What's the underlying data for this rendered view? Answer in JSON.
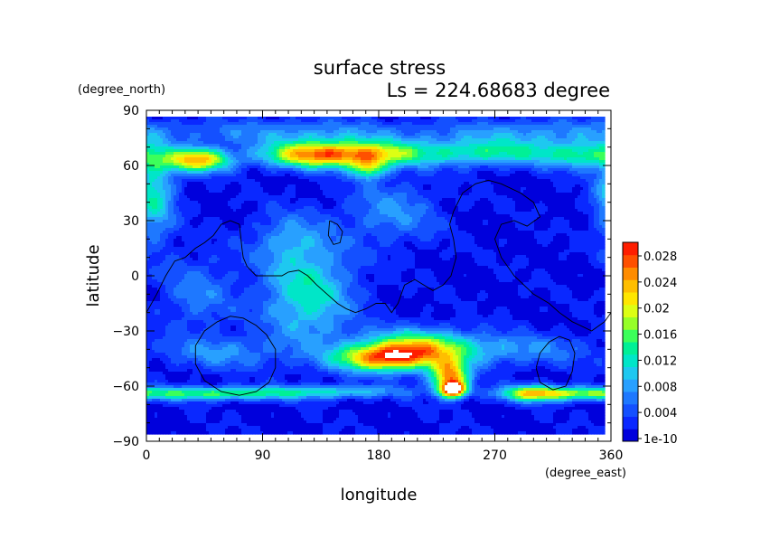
{
  "chart_data": {
    "type": "heatmap",
    "title": "surface stress",
    "subtitle": "Ls = 224.68683 degree",
    "xlabel": "longitude",
    "ylabel": "latitude",
    "x_unit": "(degree_east)",
    "y_unit": "(degree_north)",
    "xlim": [
      0,
      360
    ],
    "ylim": [
      -90,
      90
    ],
    "x_ticks": [
      "0",
      "90",
      "180",
      "270",
      "360"
    ],
    "y_ticks": [
      "90",
      "60",
      "30",
      "0",
      "−30",
      "−60",
      "−90"
    ],
    "colorbar": {
      "labels": [
        "0.028",
        "0.024",
        "0.02",
        "0.016",
        "0.012",
        "0.008",
        "0.004",
        "1e-10"
      ],
      "min": 0,
      "max": 0.03,
      "colors": [
        "#0000dc",
        "#0a28ff",
        "#1450ff",
        "#1e78ff",
        "#28a0ff",
        "#1ec8f0",
        "#00e6c8",
        "#00f096",
        "#3cff5a",
        "#96ff28",
        "#dcff14",
        "#ffe600",
        "#ffbe00",
        "#ff8c00",
        "#ff5000",
        "#ff1e00"
      ],
      "overflow_color": "#ffffff"
    },
    "background_value": 0.0015,
    "hotspots": [
      {
        "lon": 40,
        "lat": 63,
        "sx": 18,
        "sy": 4.5,
        "value": 0.022
      },
      {
        "lon": 120,
        "lat": 66,
        "sx": 24,
        "sy": 5,
        "value": 0.016
      },
      {
        "lon": 165,
        "lat": 66,
        "sx": 30,
        "sy": 5,
        "value": 0.02
      },
      {
        "lon": 172,
        "lat": 58,
        "sx": 9,
        "sy": 4,
        "value": 0.012
      },
      {
        "lon": 265,
        "lat": 67,
        "sx": 50,
        "sy": 5,
        "value": 0.012
      },
      {
        "lon": 340,
        "lat": 65,
        "sx": 20,
        "sy": 5,
        "value": 0.009
      },
      {
        "lon": 120,
        "lat": 78,
        "sx": 70,
        "sy": 5,
        "value": 0.006
      },
      {
        "lon": 300,
        "lat": 78,
        "sx": 50,
        "sy": 5,
        "value": 0.006
      },
      {
        "lon": 5,
        "lat": 45,
        "sx": 12,
        "sy": 18,
        "value": 0.011
      },
      {
        "lon": 190,
        "lat": 35,
        "sx": 25,
        "sy": 12,
        "value": 0.006
      },
      {
        "lon": 125,
        "lat": -10,
        "sx": 25,
        "sy": 20,
        "value": 0.011
      },
      {
        "lon": 110,
        "lat": 20,
        "sx": 20,
        "sy": 10,
        "value": 0.005
      },
      {
        "lon": 40,
        "lat": -10,
        "sx": 20,
        "sy": 15,
        "value": 0.005
      },
      {
        "lon": 210,
        "lat": -40,
        "sx": 30,
        "sy": 7,
        "value": 0.02
      },
      {
        "lon": 180,
        "lat": -45,
        "sx": 25,
        "sy": 5,
        "value": 0.018
      },
      {
        "lon": 235,
        "lat": -55,
        "sx": 10,
        "sy": 6,
        "value": 0.022
      },
      {
        "lon": 238,
        "lat": -62,
        "sx": 7,
        "sy": 3,
        "value": 0.026
      },
      {
        "lon": 300,
        "lat": -64,
        "sx": 18,
        "sy": 3,
        "value": 0.02
      },
      {
        "lon": 50,
        "lat": -64,
        "sx": 50,
        "sy": 2.5,
        "value": 0.014
      },
      {
        "lon": 150,
        "lat": -63,
        "sx": 40,
        "sy": 2.5,
        "value": 0.008
      },
      {
        "lon": 340,
        "lat": -64,
        "sx": 20,
        "sy": 2.5,
        "value": 0.01
      },
      {
        "lon": 290,
        "lat": -40,
        "sx": 40,
        "sy": 6,
        "value": 0.006
      },
      {
        "lon": 60,
        "lat": -42,
        "sx": 30,
        "sy": 6,
        "value": 0.006
      }
    ],
    "contour_lines": [
      [
        [
          0,
          -20
        ],
        [
          8,
          -10
        ],
        [
          15,
          0
        ],
        [
          22,
          8
        ],
        [
          30,
          10
        ],
        [
          38,
          15
        ],
        [
          45,
          18
        ],
        [
          52,
          22
        ],
        [
          58,
          28
        ],
        [
          65,
          30
        ],
        [
          72,
          28
        ],
        [
          73,
          22
        ],
        [
          74,
          15
        ],
        [
          75,
          10
        ],
        [
          78,
          5
        ],
        [
          85,
          0
        ],
        [
          95,
          0
        ],
        [
          100,
          0
        ],
        [
          105,
          0
        ],
        [
          110,
          2
        ],
        [
          118,
          3
        ],
        [
          125,
          0
        ],
        [
          132,
          -5
        ],
        [
          140,
          -10
        ],
        [
          148,
          -15
        ],
        [
          155,
          -18
        ],
        [
          162,
          -20
        ],
        [
          170,
          -18
        ],
        [
          178,
          -15
        ],
        [
          185,
          -15
        ],
        [
          190,
          -20
        ],
        [
          195,
          -15
        ],
        [
          200,
          -5
        ],
        [
          208,
          -2
        ],
        [
          215,
          -5
        ],
        [
          222,
          -8
        ],
        [
          230,
          -5
        ],
        [
          236,
          0
        ],
        [
          240,
          10
        ],
        [
          238,
          20
        ],
        [
          235,
          28
        ],
        [
          238,
          35
        ],
        [
          245,
          45
        ],
        [
          255,
          50
        ],
        [
          265,
          52
        ],
        [
          275,
          50
        ],
        [
          290,
          45
        ],
        [
          300,
          40
        ],
        [
          305,
          32
        ],
        [
          295,
          27
        ],
        [
          285,
          30
        ],
        [
          275,
          28
        ],
        [
          270,
          20
        ],
        [
          275,
          10
        ],
        [
          285,
          0
        ],
        [
          300,
          -10
        ],
        [
          312,
          -15
        ],
        [
          320,
          -20
        ],
        [
          330,
          -25
        ],
        [
          345,
          -30
        ],
        [
          355,
          -25
        ],
        [
          360,
          -20
        ]
      ],
      [
        [
          142,
          30
        ],
        [
          148,
          28
        ],
        [
          152,
          24
        ],
        [
          150,
          18
        ],
        [
          145,
          17
        ],
        [
          141,
          22
        ],
        [
          142,
          30
        ]
      ],
      [
        [
          38,
          -38
        ],
        [
          45,
          -30
        ],
        [
          55,
          -25
        ],
        [
          65,
          -22
        ],
        [
          75,
          -23
        ],
        [
          85,
          -27
        ],
        [
          93,
          -32
        ],
        [
          100,
          -40
        ],
        [
          100,
          -50
        ],
        [
          95,
          -58
        ],
        [
          85,
          -63
        ],
        [
          72,
          -65
        ],
        [
          58,
          -63
        ],
        [
          45,
          -57
        ],
        [
          38,
          -48
        ],
        [
          38,
          -38
        ]
      ],
      [
        [
          302,
          -50
        ],
        [
          305,
          -42
        ],
        [
          312,
          -36
        ],
        [
          320,
          -33
        ],
        [
          328,
          -35
        ],
        [
          332,
          -42
        ],
        [
          330,
          -52
        ],
        [
          325,
          -60
        ],
        [
          315,
          -62
        ],
        [
          305,
          -58
        ],
        [
          302,
          -50
        ]
      ]
    ]
  }
}
